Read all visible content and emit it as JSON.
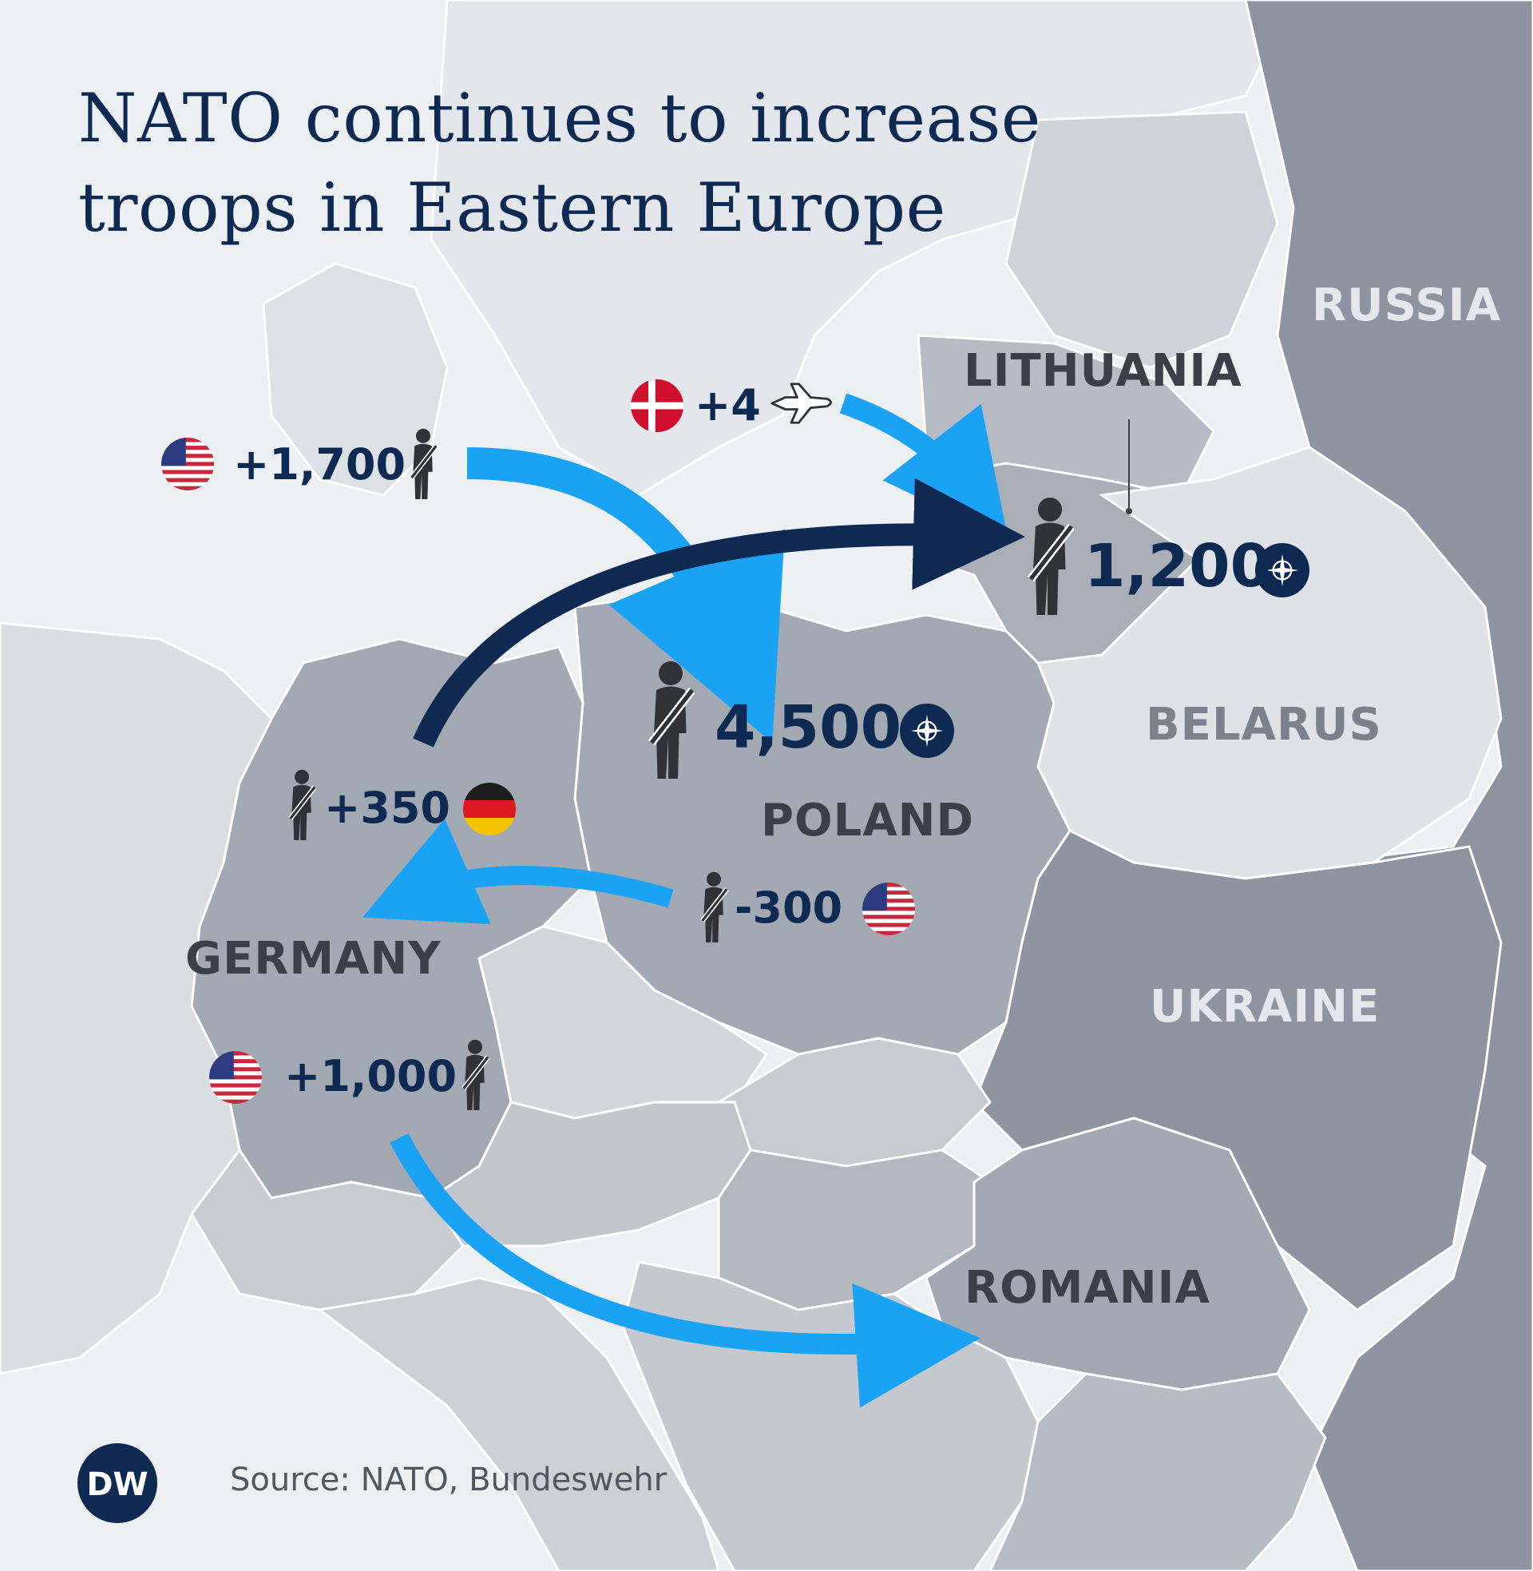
{
  "title": {
    "line1": "NATO continues to increase",
    "line2": "troops in Eastern Europe"
  },
  "countries": {
    "russia": "RUSSIA",
    "lithuania": "LITHUANIA",
    "belarus": "BELARUS",
    "poland": "POLAND",
    "germany": "GERMANY",
    "ukraine": "UKRAINE",
    "romania": "ROMANIA"
  },
  "deployments": {
    "denmark_to_lithuania": {
      "value": "+4",
      "flag": "denmark-flag",
      "icon": "fighter-jet-icon"
    },
    "us_to_poland": {
      "value": "+1,700",
      "flag": "us-flag",
      "icon": "soldier-icon"
    },
    "germany_to_lithuania": {
      "value": "+350",
      "flag": "germany-flag",
      "icon": "soldier-icon"
    },
    "us_poland_to_germany": {
      "value": "-300",
      "flag": "us-flag",
      "icon": "soldier-icon"
    },
    "us_germany_to_romania": {
      "value": "+1,000",
      "flag": "us-flag",
      "icon": "soldier-icon"
    }
  },
  "totals": {
    "lithuania": {
      "value": "1,200",
      "emblem": "nato-emblem"
    },
    "poland": {
      "value": "4,500",
      "emblem": "nato-emblem"
    }
  },
  "colors": {
    "title": "#0e2a52",
    "arrow_light": "#1aa3f5",
    "arrow_dark": "#0e2a52",
    "russia_fill": "#8e95a0"
  },
  "logo": "DW",
  "source": "Source: NATO, Bundeswehr"
}
